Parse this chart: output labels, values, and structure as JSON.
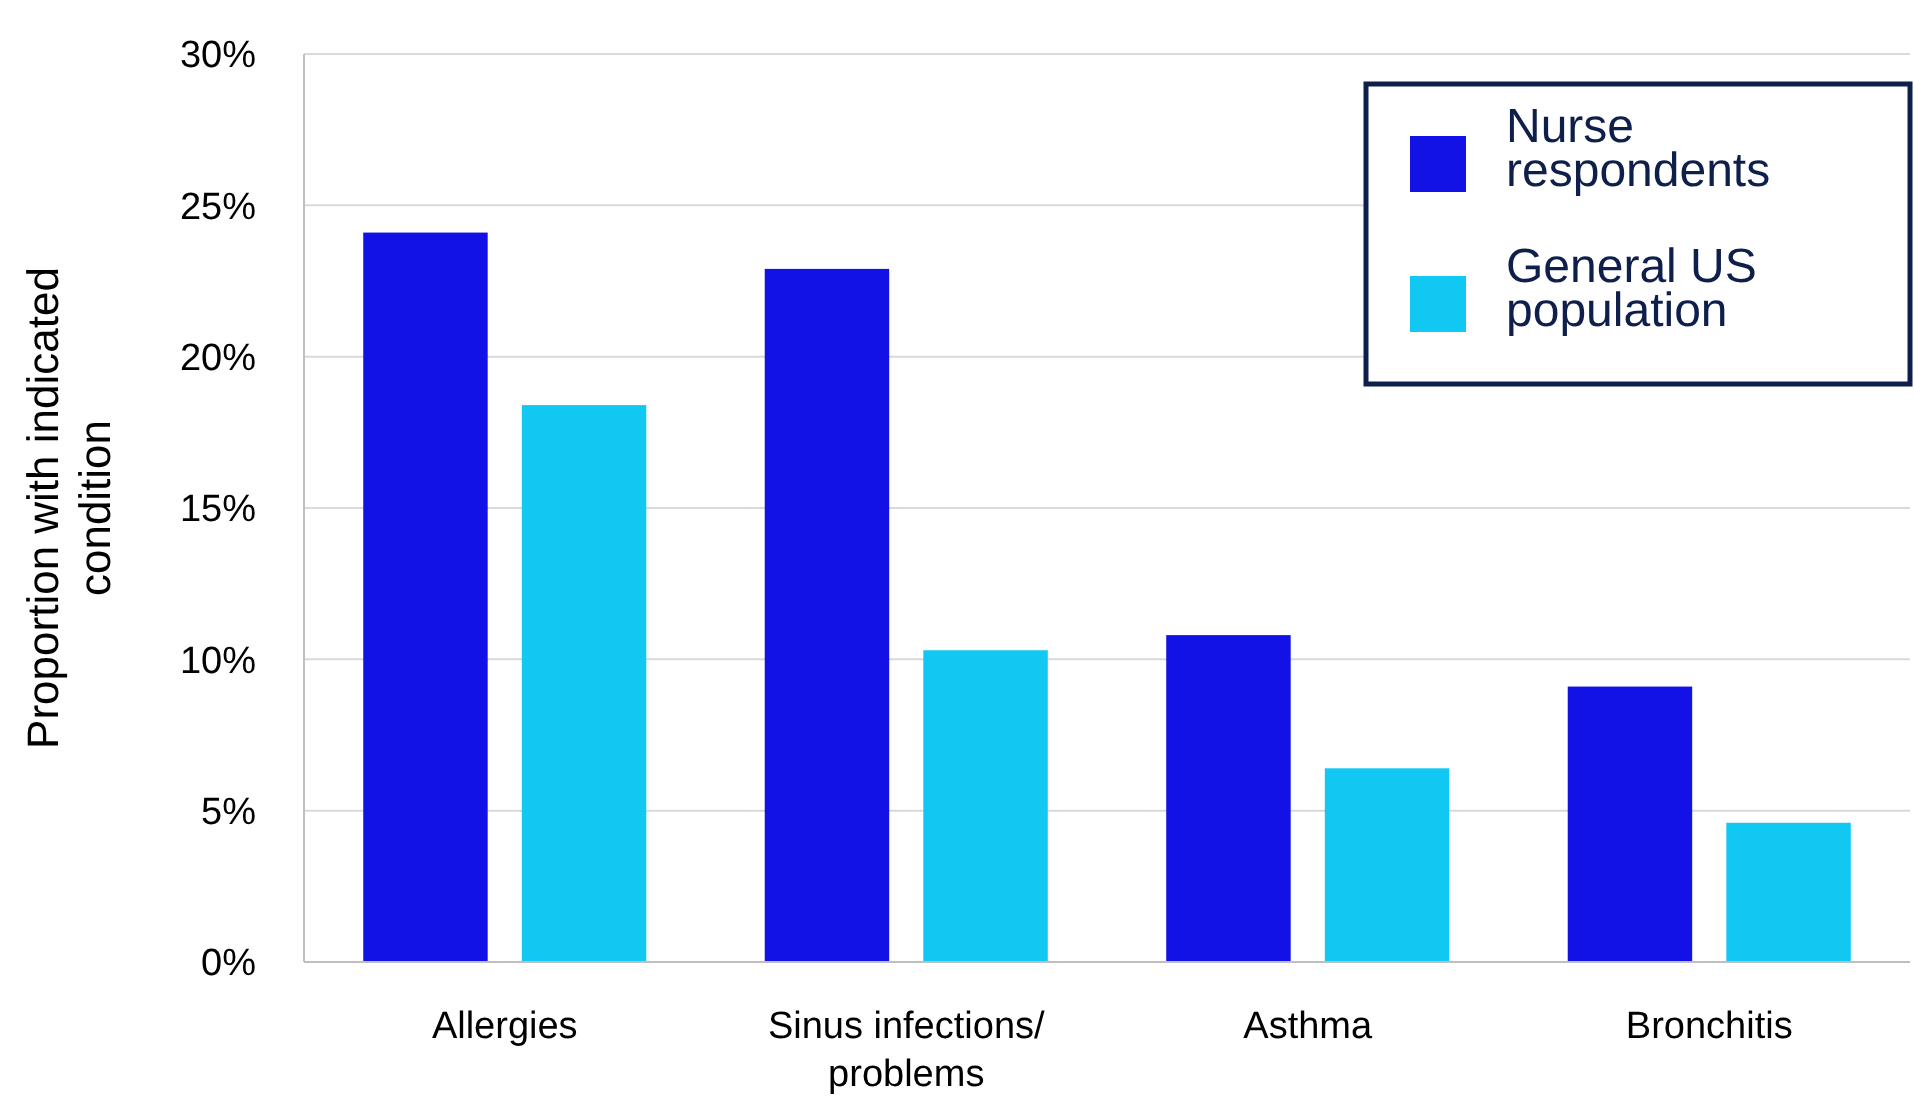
{
  "chart_data": {
    "type": "bar",
    "ylabel": "Proportion with indicated condition",
    "categories": [
      "Allergies",
      "Sinus infections/ problems",
      "Asthma",
      "Bronchitis"
    ],
    "series": [
      {
        "name": "Nurse respondents",
        "color": "#1212e6",
        "values": [
          24.1,
          22.9,
          10.8,
          9.1
        ]
      },
      {
        "name": "General US population",
        "color": "#11c8f2",
        "values": [
          18.4,
          10.3,
          6.4,
          4.6
        ]
      }
    ],
    "ylim": [
      0,
      30
    ],
    "yticks": [
      {
        "value": 0,
        "label": "0%"
      },
      {
        "value": 5,
        "label": "5%"
      },
      {
        "value": 10,
        "label": "10%"
      },
      {
        "value": 15,
        "label": "15%"
      },
      {
        "value": 20,
        "label": "20%"
      },
      {
        "value": 25,
        "label": "25%"
      },
      {
        "value": 30,
        "label": "30%"
      }
    ],
    "grid": "y",
    "legend": "top right"
  }
}
